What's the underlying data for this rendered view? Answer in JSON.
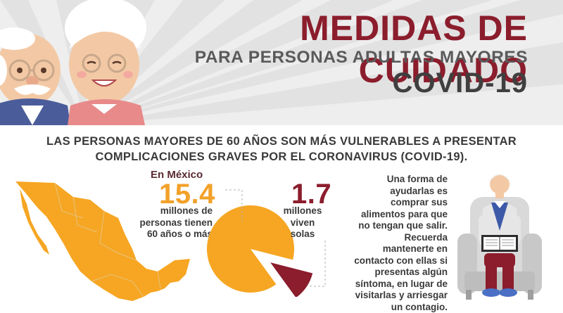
{
  "header": {
    "title": "MEDIDAS DE CUIDADO",
    "subtitle": "PARA PERSONAS ADULTAS MAYORES",
    "covid": "COVID-19"
  },
  "headline": {
    "line1": "LAS PERSONAS MAYORES DE 60 AÑOS SON MÁS VULNERABLES A PRESENTAR",
    "line2": "COMPLICACIONES GRAVES POR EL CORONAVIRUS (COVID-19)."
  },
  "stats": {
    "region": "En México",
    "total_value": "15.4",
    "total_line1": "millones de",
    "total_line2": "personas tienen",
    "total_line3": "60 años o más",
    "alone_value": "1.7",
    "alone_line1": "millones",
    "alone_line2": "viven",
    "alone_line3": "solas",
    "alone_fraction": 0.11
  },
  "advice": {
    "lines": [
      "Una forma de",
      "ayudarlas es",
      "comprar sus",
      "alimentos para que",
      "no tengan que salir.",
      "Recuerda",
      "mantenerte en",
      "contacto con ellas si",
      "presentas algún",
      "síntoma, en lugar de",
      "visitarlas y arriesgar",
      "un contagio."
    ]
  },
  "colors": {
    "brand_maroon": "#8b1d2c",
    "accent_orange": "#f2a12a",
    "text_dark": "#3a3a3a"
  },
  "icons": {
    "map": "mexico-map",
    "chart": "pie-chart",
    "illustration": "elderly-man-reading"
  }
}
